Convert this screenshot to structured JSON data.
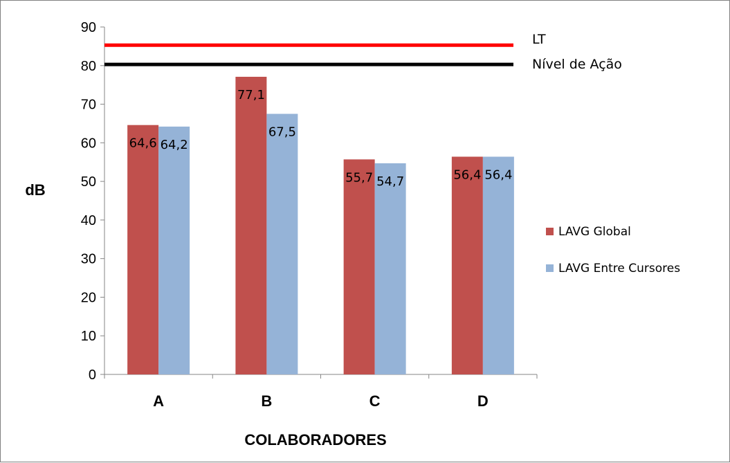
{
  "chart_data": {
    "type": "bar",
    "categories": [
      "A",
      "B",
      "C",
      "D"
    ],
    "series": [
      {
        "name": "LAVG Global",
        "color": "#c0504d",
        "values": [
          64.6,
          77.1,
          55.7,
          56.4
        ],
        "labels": [
          "64,6",
          "77,1",
          "55,7",
          "56,4"
        ]
      },
      {
        "name": "LAVG Entre Cursores",
        "color": "#95b3d7",
        "values": [
          64.2,
          67.5,
          54.7,
          56.4
        ],
        "labels": [
          "64,2",
          "67,5",
          "54,7",
          "56,4"
        ]
      }
    ],
    "reference_lines": [
      {
        "name": "LT",
        "value": 85.3,
        "color": "#ff0000"
      },
      {
        "name": "Nível de Ação",
        "value": 80.3,
        "color": "#000000"
      }
    ],
    "ylabel": "dB",
    "xlabel": "COLABORADORES",
    "ylim": [
      0,
      90
    ],
    "yticks": [
      0,
      10,
      20,
      30,
      40,
      50,
      60,
      70,
      80,
      90
    ],
    "grid": false,
    "legend_position": "right"
  }
}
